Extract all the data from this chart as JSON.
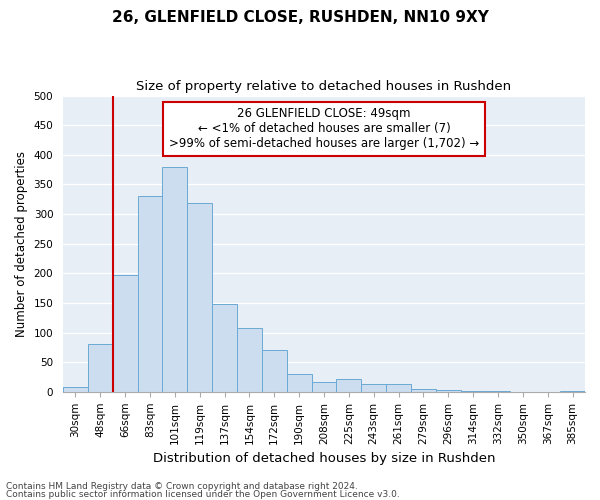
{
  "title1": "26, GLENFIELD CLOSE, RUSHDEN, NN10 9XY",
  "title2": "Size of property relative to detached houses in Rushden",
  "xlabel": "Distribution of detached houses by size in Rushden",
  "ylabel": "Number of detached properties",
  "categories": [
    "30sqm",
    "48sqm",
    "66sqm",
    "83sqm",
    "101sqm",
    "119sqm",
    "137sqm",
    "154sqm",
    "172sqm",
    "190sqm",
    "208sqm",
    "225sqm",
    "243sqm",
    "261sqm",
    "279sqm",
    "296sqm",
    "314sqm",
    "332sqm",
    "350sqm",
    "367sqm",
    "385sqm"
  ],
  "values": [
    8,
    80,
    197,
    330,
    380,
    318,
    148,
    107,
    70,
    30,
    17,
    22,
    14,
    14,
    5,
    3,
    1,
    1,
    0,
    0,
    1
  ],
  "bar_color": "#cdddf0",
  "bar_edge_color": "#6aaad4",
  "vline_color": "#cc0000",
  "vline_x": 1.5,
  "annotation_text": "26 GLENFIELD CLOSE: 49sqm\n← <1% of detached houses are smaller (7)\n>99% of semi-detached houses are larger (1,702) →",
  "annotation_box_color": "#ffffff",
  "annotation_box_edge": "#cc0000",
  "ylim": [
    0,
    500
  ],
  "yticks": [
    0,
    50,
    100,
    150,
    200,
    250,
    300,
    350,
    400,
    450,
    500
  ],
  "footer1": "Contains HM Land Registry data © Crown copyright and database right 2024.",
  "footer2": "Contains public sector information licensed under the Open Government Licence v3.0.",
  "bg_color": "#e8eef6",
  "fig_bg_color": "#ffffff",
  "title1_fontsize": 11,
  "title2_fontsize": 9.5,
  "xlabel_fontsize": 9.5,
  "ylabel_fontsize": 8.5,
  "tick_fontsize": 7.5,
  "footer_fontsize": 6.5,
  "annotation_fontsize": 8.5
}
